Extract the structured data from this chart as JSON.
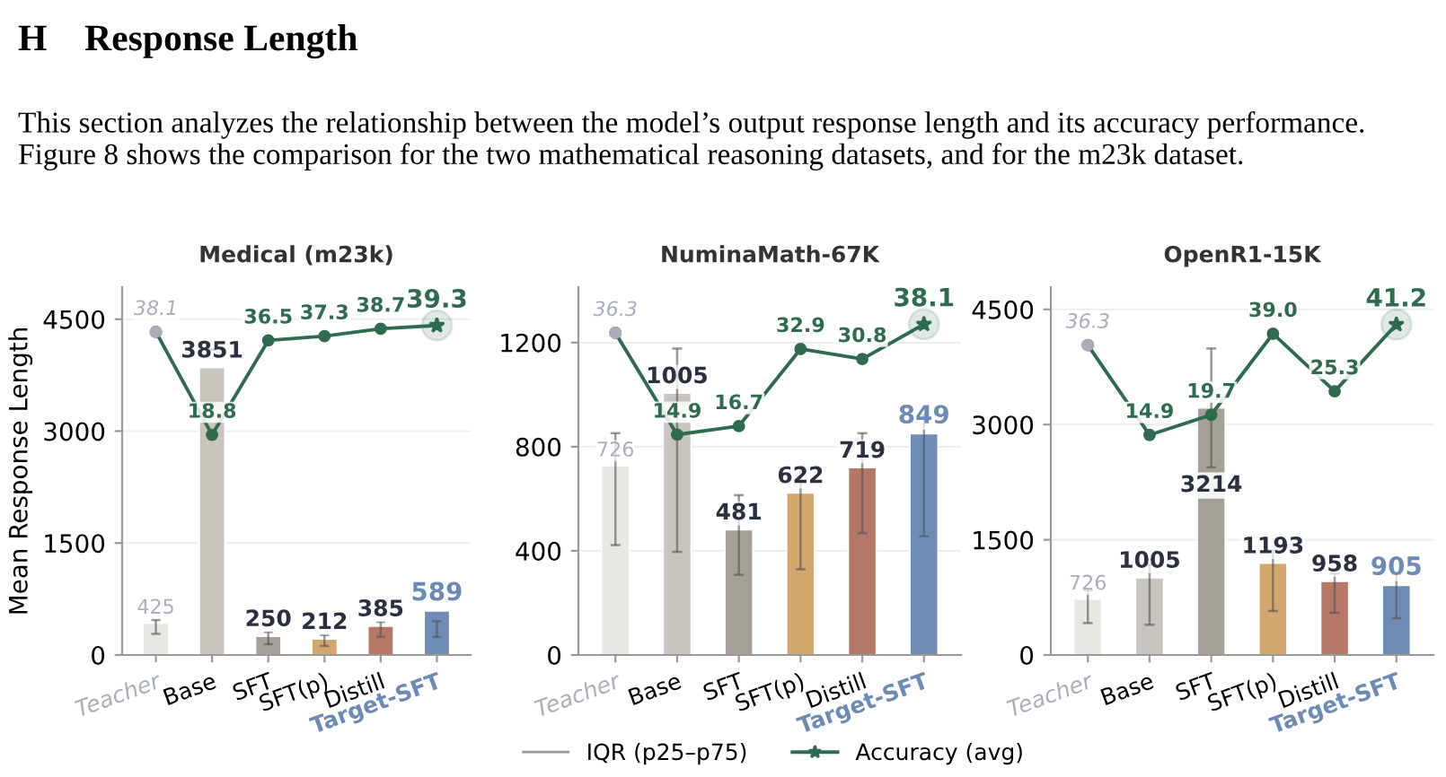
{
  "chart_data": [
    {
      "type": "bar",
      "title": "Medical (m23k)",
      "ylabel": "Mean Response Length",
      "annotations": [
        "H    Response Length",
        "This section analyzes the relationship between the model’s output response length and its accuracy performance.  Figure 8 shows the comparison for the two mathematical reasoning datasets, and for the m23k dataset."
      ],
      "categories": [
        "Teacher",
        "Base",
        "SFT",
        "SFT(p)",
        "Distill",
        "Target-SFT"
      ],
      "ylim": [
        0,
        4930
      ],
      "yticks": [
        0,
        1500,
        3000,
        4500
      ],
      "y2lim": [
        -22.5,
        46.5
      ],
      "grid": "y",
      "tick_labels": "xy",
      "series": [
        {
          "colors": [
            "#e9e7e2",
            "#c9c5be",
            "#a5a198",
            "#d2a66c",
            "#b57766",
            "#6d8db5"
          ],
          "values": [
            425,
            3851,
            250,
            212,
            385,
            589
          ],
          "value_labels": [
            "425",
            "3851",
            "250",
            "212",
            "385",
            "589"
          ],
          "errors": [
            [
              283,
              468
            ],
            [
              4096,
              4096
            ],
            [
              145,
              307
            ],
            [
              121,
              267
            ],
            [
              242,
              444
            ],
            [
              242,
              452
            ]
          ]
        },
        {
          "type": "line",
          "name": "Accuracy (avg)",
          "axis": "y2",
          "color": "#2e6b4f",
          "marker": "circle",
          "values": [
            38.1,
            18.8,
            36.5,
            37.3,
            38.7,
            39.3
          ],
          "value_labels": [
            "38.1",
            "18.8",
            "36.5",
            "37.3",
            "38.7",
            "39.3"
          ]
        }
      ]
    },
    {
      "type": "bar",
      "title": "NuminaMath-67K",
      "legend": "bottom",
      "annotations": [
        "IQR (p25–p75)"
      ],
      "categories": [
        "Teacher",
        "Base",
        "SFT",
        "SFT(p)",
        "Distill",
        "Target-SFT"
      ],
      "ylim": [
        0,
        1413
      ],
      "yticks": [
        0,
        400,
        800,
        1200
      ],
      "y2lim": [
        -31.4,
        45.9
      ],
      "grid": "y",
      "tick_labels": "xy",
      "series": [
        {
          "colors": [
            "#e9e7e2",
            "#c9c5be",
            "#a5a198",
            "#d2a66c",
            "#b57766",
            "#6d8db5"
          ],
          "values": [
            726,
            1005,
            481,
            622,
            719,
            849
          ],
          "value_labels": [
            "726",
            "1005",
            "481",
            "622",
            "719",
            "849"
          ],
          "errors": [
            [
              422,
              852
            ],
            [
              396,
              1177
            ],
            [
              308,
              614
            ],
            [
              329,
              723
            ],
            [
              468,
              852
            ],
            [
              456,
              922
            ]
          ]
        },
        {
          "type": "line",
          "name": "Accuracy (avg)",
          "axis": "y2",
          "color": "#2e6b4f",
          "marker": "circle",
          "values": [
            36.3,
            14.9,
            16.7,
            32.9,
            30.8,
            38.1
          ],
          "value_labels": [
            "36.3",
            "14.9",
            "16.7",
            "32.9",
            "30.8",
            "38.1"
          ]
        }
      ]
    },
    {
      "type": "bar",
      "title": "OpenR1-15K",
      "categories": [
        "Teacher",
        "Base",
        "SFT",
        "SFT(p)",
        "Distill",
        "Target-SFT"
      ],
      "ylim": [
        0,
        4790
      ],
      "yticks": [
        0,
        1500,
        3000,
        4500
      ],
      "y2lim": [
        -37.5,
        50.1
      ],
      "grid": "y",
      "tick_labels": "xy",
      "series": [
        {
          "colors": [
            "#e9e7e2",
            "#c9c5be",
            "#a5a198",
            "#d2a66c",
            "#b57766",
            "#6d8db5"
          ],
          "values": [
            726,
            1005,
            3214,
            1193,
            958,
            905
          ],
          "value_labels": [
            "726",
            "1005",
            "3214",
            "1193",
            "958",
            "905"
          ],
          "errors": [
            [
              416,
              841
            ],
            [
              393,
              1178
            ],
            [
              2443,
              3991
            ],
            [
              573,
              1359
            ],
            [
              550,
              1060
            ],
            [
              479,
              1053
            ]
          ]
        },
        {
          "type": "line",
          "name": "Accuracy (avg)",
          "axis": "y2",
          "color": "#2e6b4f",
          "marker": "circle",
          "values": [
            36.3,
            14.9,
            19.7,
            39.0,
            25.3,
            41.2
          ],
          "value_labels": [
            "36.3",
            "14.9",
            "19.7",
            "39.0",
            "25.3",
            "41.2"
          ]
        }
      ]
    }
  ]
}
